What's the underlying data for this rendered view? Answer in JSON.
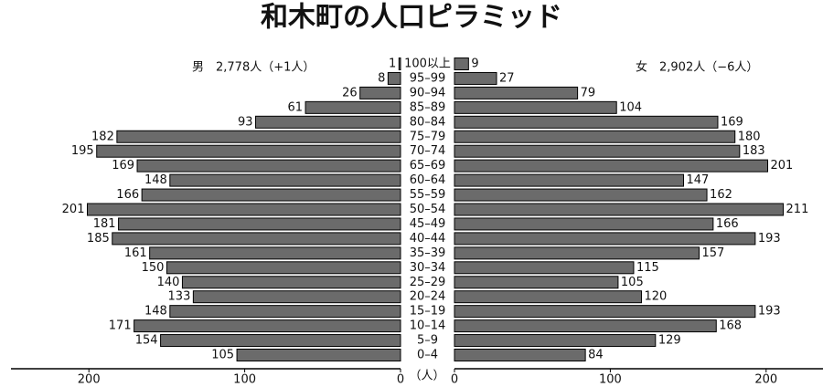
{
  "chart_data": {
    "type": "pyramid",
    "title": "和木町の人口ピラミッド",
    "categories": [
      "100以上",
      "95–99",
      "90–94",
      "85–89",
      "80–84",
      "75–79",
      "70–74",
      "65–69",
      "60–64",
      "55–59",
      "50–54",
      "45–49",
      "40–44",
      "35–39",
      "30–34",
      "25–29",
      "20–24",
      "15–19",
      "10–14",
      "5–9",
      "0–4"
    ],
    "series": [
      {
        "name": "男　2,778人（+1人）",
        "color": "#6b6b6b",
        "values": [
          1,
          8,
          26,
          61,
          93,
          182,
          195,
          169,
          148,
          166,
          201,
          181,
          185,
          161,
          150,
          140,
          133,
          148,
          171,
          154,
          105
        ]
      },
      {
        "name": "女　2,902人（−6人）",
        "color": "#6b6b6b",
        "values": [
          9,
          27,
          79,
          104,
          169,
          180,
          183,
          201,
          147,
          162,
          211,
          166,
          193,
          157,
          115,
          105,
          120,
          193,
          168,
          129,
          84
        ]
      }
    ],
    "x_label": "（人）",
    "xlim": [
      0,
      250
    ],
    "xticks": [
      0,
      100,
      200
    ]
  }
}
